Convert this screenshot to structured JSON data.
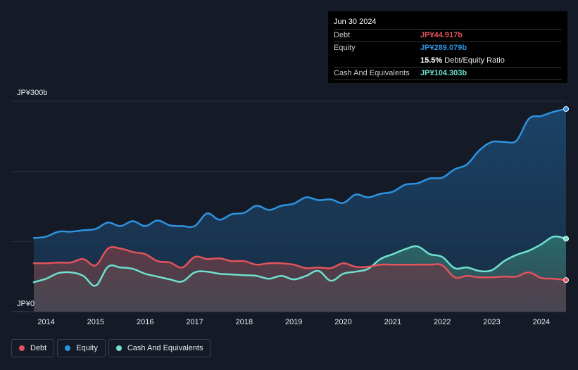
{
  "tooltip": {
    "date": "Jun 30 2024",
    "debt_label": "Debt",
    "debt_value": "JP¥44.917b",
    "equity_label": "Equity",
    "equity_value": "JP¥289.079b",
    "ratio_value": "15.5%",
    "ratio_label": "Debt/Equity Ratio",
    "cash_label": "Cash And Equivalents",
    "cash_value": "JP¥104.303b"
  },
  "colors": {
    "debt": "#e2535c",
    "equity": "#2d93e0",
    "cash": "#6fe0cf",
    "background": "#151b26"
  },
  "legend": [
    {
      "label": "Debt",
      "color": "#e2535c"
    },
    {
      "label": "Equity",
      "color": "#2d93e0"
    },
    {
      "label": "Cash And Equivalents",
      "color": "#6fe0cf"
    }
  ],
  "chart_data": {
    "type": "area",
    "title": "",
    "ylabel": "",
    "xlabel": "",
    "y_unit": "JP¥ billions",
    "ylim": [
      0,
      300
    ],
    "xlim": [
      2013.75,
      2024.5
    ],
    "y_tick_labels": {
      "top": "JP¥300b",
      "bottom": "JP¥0"
    },
    "x_ticks": [
      2014,
      2015,
      2016,
      2017,
      2018,
      2019,
      2020,
      2021,
      2022,
      2023,
      2024
    ],
    "series": [
      {
        "name": "Equity",
        "x": [
          2013.75,
          2014.0,
          2014.25,
          2014.5,
          2014.75,
          2015.0,
          2015.25,
          2015.5,
          2015.75,
          2016.0,
          2016.25,
          2016.5,
          2016.75,
          2017.0,
          2017.25,
          2017.5,
          2017.75,
          2018.0,
          2018.25,
          2018.5,
          2018.75,
          2019.0,
          2019.25,
          2019.5,
          2019.75,
          2020.0,
          2020.25,
          2020.5,
          2020.75,
          2021.0,
          2021.25,
          2021.5,
          2021.75,
          2022.0,
          2022.25,
          2022.5,
          2022.75,
          2023.0,
          2023.25,
          2023.5,
          2023.75,
          2024.0,
          2024.25,
          2024.5
        ],
        "values": [
          105,
          107,
          114,
          114,
          116,
          118,
          127,
          122,
          129,
          122,
          130,
          123,
          122,
          122,
          140,
          131,
          139,
          141,
          151,
          145,
          151,
          154,
          163,
          159,
          160,
          155,
          167,
          163,
          168,
          171,
          181,
          183,
          190,
          191,
          203,
          210,
          230,
          242,
          242,
          244,
          275,
          279,
          285,
          289
        ]
      },
      {
        "name": "Debt",
        "x": [
          2013.75,
          2014.0,
          2014.25,
          2014.5,
          2014.75,
          2015.0,
          2015.25,
          2015.5,
          2015.75,
          2016.0,
          2016.25,
          2016.5,
          2016.75,
          2017.0,
          2017.25,
          2017.5,
          2017.75,
          2018.0,
          2018.25,
          2018.5,
          2018.75,
          2019.0,
          2019.25,
          2019.5,
          2019.75,
          2020.0,
          2020.25,
          2020.5,
          2020.75,
          2021.0,
          2021.25,
          2021.5,
          2021.75,
          2022.0,
          2022.25,
          2022.5,
          2022.75,
          2023.0,
          2023.25,
          2023.5,
          2023.75,
          2024.0,
          2024.25,
          2024.5
        ],
        "values": [
          69,
          69,
          70,
          70,
          75,
          66,
          90,
          90,
          85,
          82,
          72,
          70,
          63,
          78,
          75,
          76,
          72,
          72,
          67,
          69,
          69,
          67,
          62,
          63,
          62,
          69,
          64,
          64,
          67,
          67,
          67,
          67,
          67,
          66,
          49,
          51,
          49,
          49,
          50,
          50,
          56,
          48,
          47,
          45
        ]
      },
      {
        "name": "Cash And Equivalents",
        "x": [
          2013.75,
          2014.0,
          2014.25,
          2014.5,
          2014.75,
          2015.0,
          2015.25,
          2015.5,
          2015.75,
          2016.0,
          2016.25,
          2016.5,
          2016.75,
          2017.0,
          2017.25,
          2017.5,
          2017.75,
          2018.0,
          2018.25,
          2018.5,
          2018.75,
          2019.0,
          2019.25,
          2019.5,
          2019.75,
          2020.0,
          2020.25,
          2020.5,
          2020.75,
          2021.0,
          2021.25,
          2021.5,
          2021.75,
          2022.0,
          2022.25,
          2022.5,
          2022.75,
          2023.0,
          2023.25,
          2023.5,
          2023.75,
          2024.0,
          2024.25,
          2024.5
        ],
        "values": [
          42,
          47,
          55,
          56,
          51,
          37,
          64,
          63,
          61,
          54,
          50,
          46,
          43,
          56,
          57,
          54,
          53,
          52,
          51,
          47,
          51,
          46,
          51,
          58,
          44,
          54,
          57,
          61,
          75,
          82,
          89,
          93,
          82,
          78,
          62,
          63,
          58,
          59,
          72,
          81,
          87,
          96,
          107,
          104
        ]
      }
    ]
  }
}
